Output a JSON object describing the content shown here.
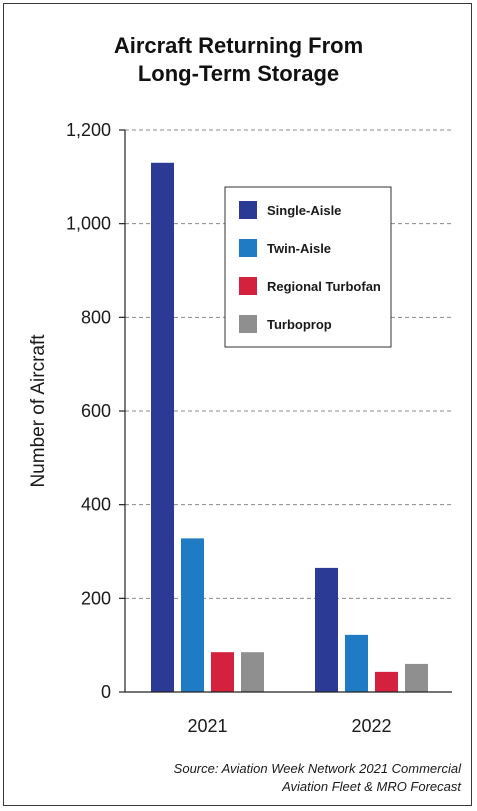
{
  "chart_data": {
    "type": "bar",
    "title_lines": [
      "Aircraft Returning From",
      "Long-Term Storage"
    ],
    "ylabel": "Number of Aircraft",
    "xlabel": "",
    "categories": [
      "2021",
      "2022"
    ],
    "series": [
      {
        "name": "Single-Aisle",
        "color": "#2b3a94",
        "values": [
          1130,
          265
        ]
      },
      {
        "name": "Twin-Aisle",
        "color": "#1f7cc4",
        "values": [
          328,
          122
        ]
      },
      {
        "name": "Regional Turbofan",
        "color": "#d4213d",
        "values": [
          85,
          43
        ]
      },
      {
        "name": "Turboprop",
        "color": "#8f8f8f",
        "values": [
          85,
          60
        ]
      }
    ],
    "ylim": [
      0,
      1200
    ],
    "yticks": [
      0,
      200,
      400,
      600,
      800,
      1000,
      1200
    ],
    "ytick_labels": [
      "0",
      "200",
      "400",
      "600",
      "800",
      "1,000",
      "1,200"
    ],
    "grid": true,
    "legend_position": "top-right"
  },
  "source_lines": [
    "Source: Aviation Week Network 2021 Commercial",
    "Aviation Fleet & MRO Forecast"
  ]
}
